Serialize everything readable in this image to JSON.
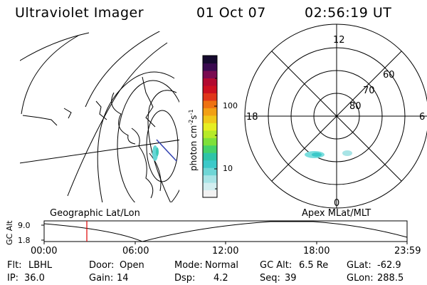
{
  "header": {
    "instrument": "Ultraviolet Imager",
    "date": "01 Oct 07",
    "time": "02:56:19 UT"
  },
  "colorbar": {
    "label": "photon cm",
    "label_sup1": "-2",
    "label_s": "s",
    "label_sup2": "-1",
    "ticks": [
      "100",
      "10"
    ],
    "colors": [
      "#f2f2f2",
      "#d2eef0",
      "#a8e4e6",
      "#6fd6d6",
      "#3cc9c9",
      "#2ec4a8",
      "#45d26a",
      "#7ee03a",
      "#b6ea28",
      "#e6ee22",
      "#f0c81a",
      "#f2a015",
      "#ee7212",
      "#e0361a",
      "#cc1020",
      "#b20a30",
      "#7a0a50",
      "#3a0a50",
      "#150a2e"
    ]
  },
  "polar_plot": {
    "labels": {
      "top": "12",
      "bottom": "0",
      "left": "18",
      "right": "6",
      "lat60": "60",
      "lat70": "70",
      "lat80": "80"
    }
  },
  "timeline": {
    "left_label": "Geographic Lat/Lon",
    "right_label": "Apex MLat/MLT",
    "axis_title": "GC Alt",
    "y_ticks": [
      "9.0",
      "1.8"
    ],
    "x_ticks": [
      "00:00",
      "06:00",
      "12:00",
      "18:00",
      "23:59"
    ],
    "marker_time": "02:56"
  },
  "info": {
    "filter_label": "Flt:",
    "filter_value": "LBHL",
    "door_label": "Door:",
    "door_value": "Open",
    "mode_label": "Mode:",
    "mode_value": "Normal",
    "gcalt_label": "GC Alt:",
    "gcalt_value": "6.5 Re",
    "glat_label": "GLat:",
    "glat_value": "-62.9",
    "ip_label": "IP:",
    "ip_value": "36.0",
    "gain_label": "Gain:",
    "gain_value": "14",
    "dsp_label": "Dsp:",
    "dsp_value": "4.2",
    "seq_label": "Seq:",
    "seq_value": "39",
    "glon_label": "GLon:",
    "glon_value": "288.5"
  }
}
